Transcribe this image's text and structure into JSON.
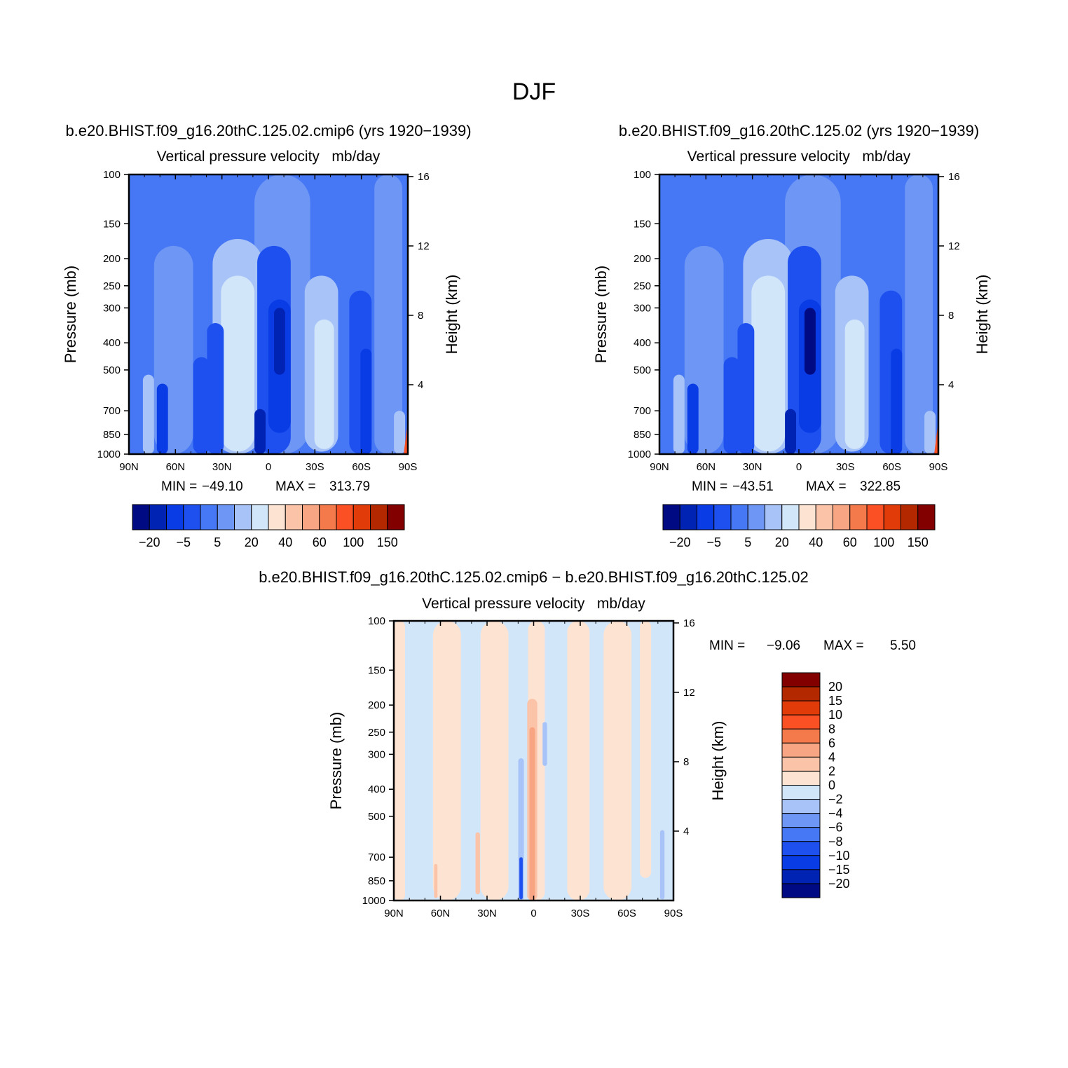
{
  "figure": {
    "title": "DJF"
  },
  "palette": {
    "full": [
      "#000a82",
      "#0023b4",
      "#0a3ce6",
      "#1e50f0",
      "#4678f5",
      "#6e96f5",
      "#a8c3f7",
      "#d2e6fa",
      "#fde3d2",
      "#fbc3a8",
      "#f7a582",
      "#f57a4b",
      "#fa5023",
      "#e13b0a",
      "#b42800",
      "#820000"
    ],
    "diff": [
      "#820000",
      "#b42800",
      "#e13b0a",
      "#fa5023",
      "#f57a4b",
      "#f7a582",
      "#fbc3a8",
      "#fde3d2",
      "#d2e6fa",
      "#a8c3f7",
      "#6e96f5",
      "#4678f5",
      "#1e50f0",
      "#0a3ce6",
      "#0023b4",
      "#000a82"
    ]
  },
  "chart_data": [
    {
      "type": "heatmap",
      "title": "b.e20.BHIST.f09_g16.20thC.125.02.cmip6 (yrs 1920−1939)",
      "subtitle": "Vertical pressure velocity   mb/day",
      "xlabel": "",
      "ylabel": "Pressure (mb)",
      "y2label": "Height (km)",
      "x_ticks": [
        "90N",
        "60N",
        "30N",
        "0",
        "30S",
        "60S",
        "90S"
      ],
      "y_ticks": [
        "100",
        "150",
        "200",
        "250",
        "300",
        "400",
        "500",
        "700",
        "850",
        "1000"
      ],
      "y_tick_values": [
        100,
        150,
        200,
        250,
        300,
        400,
        500,
        700,
        850,
        1000
      ],
      "ylim": [
        1000,
        100
      ],
      "y_scale": "log",
      "y2_ticks": [
        "16",
        "12",
        "8",
        "4"
      ],
      "y2_tick_values": [
        16,
        12,
        8,
        4
      ],
      "min_label": "MIN =",
      "min_value": "−49.10",
      "max_label": "MAX =",
      "max_value": "313.79",
      "colorbar_labels": [
        "−20",
        "−5",
        "5",
        "20",
        "40",
        "60",
        "100",
        "150"
      ],
      "colorbar_orientation": "horizontal"
    },
    {
      "type": "heatmap",
      "title": "b.e20.BHIST.f09_g16.20thC.125.02 (yrs 1920−1939)",
      "subtitle": "Vertical pressure velocity   mb/day",
      "xlabel": "",
      "ylabel": "Pressure (mb)",
      "y2label": "Height (km)",
      "x_ticks": [
        "90N",
        "60N",
        "30N",
        "0",
        "30S",
        "60S",
        "90S"
      ],
      "y_ticks": [
        "100",
        "150",
        "200",
        "250",
        "300",
        "400",
        "500",
        "700",
        "850",
        "1000"
      ],
      "y_tick_values": [
        100,
        150,
        200,
        250,
        300,
        400,
        500,
        700,
        850,
        1000
      ],
      "ylim": [
        1000,
        100
      ],
      "y_scale": "log",
      "y2_ticks": [
        "16",
        "12",
        "8",
        "4"
      ],
      "y2_tick_values": [
        16,
        12,
        8,
        4
      ],
      "min_label": "MIN =",
      "min_value": "−43.51",
      "max_label": "MAX =",
      "max_value": "322.85",
      "colorbar_labels": [
        "−20",
        "−5",
        "5",
        "20",
        "40",
        "60",
        "100",
        "150"
      ],
      "colorbar_orientation": "horizontal"
    },
    {
      "type": "heatmap",
      "title": "b.e20.BHIST.f09_g16.20thC.125.02.cmip6 − b.e20.BHIST.f09_g16.20thC.125.02",
      "subtitle": "Vertical pressure velocity   mb/day",
      "xlabel": "",
      "ylabel": "Pressure (mb)",
      "y2label": "Height (km)",
      "x_ticks": [
        "90N",
        "60N",
        "30N",
        "0",
        "30S",
        "60S",
        "90S"
      ],
      "y_ticks": [
        "100",
        "150",
        "200",
        "250",
        "300",
        "400",
        "500",
        "700",
        "850",
        "1000"
      ],
      "y_tick_values": [
        100,
        150,
        200,
        250,
        300,
        400,
        500,
        700,
        850,
        1000
      ],
      "ylim": [
        1000,
        100
      ],
      "y_scale": "log",
      "y2_ticks": [
        "16",
        "12",
        "8",
        "4"
      ],
      "y2_tick_values": [
        16,
        12,
        8,
        4
      ],
      "min_label": "MIN =",
      "min_value": "−9.06",
      "max_label": "MAX =",
      "max_value": "5.50",
      "colorbar_labels": [
        "20",
        "15",
        "10",
        "8",
        "6",
        "4",
        "2",
        "0",
        "−2",
        "−4",
        "−6",
        "−8",
        "−10",
        "−15",
        "−20"
      ],
      "colorbar_orientation": "vertical"
    }
  ]
}
